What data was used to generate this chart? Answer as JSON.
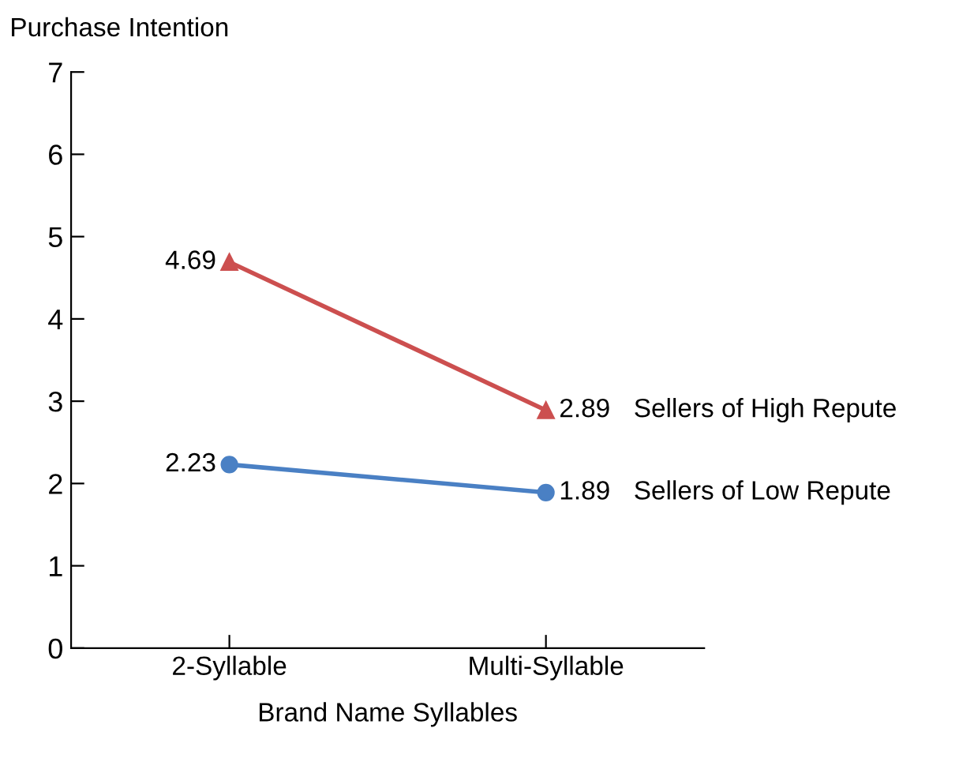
{
  "chart_data": {
    "type": "line",
    "ylabel": "Purchase Intention",
    "xlabel": "Brand Name Syllables",
    "categories": [
      "2-Syllable",
      "Multi-Syllable"
    ],
    "series": [
      {
        "name": "Sellers of High Repute",
        "color": "#cc4f4f",
        "marker": "triangle",
        "values": [
          4.69,
          2.89
        ]
      },
      {
        "name": "Sellers of Low Repute",
        "color": "#4a80c4",
        "marker": "circle",
        "values": [
          2.23,
          1.89
        ]
      }
    ],
    "ylim": [
      0,
      7
    ],
    "yticks": [
      0,
      1,
      2,
      3,
      4,
      5,
      6,
      7
    ],
    "data_labels": true,
    "grid": false,
    "legend": false,
    "line_style": "solid"
  }
}
